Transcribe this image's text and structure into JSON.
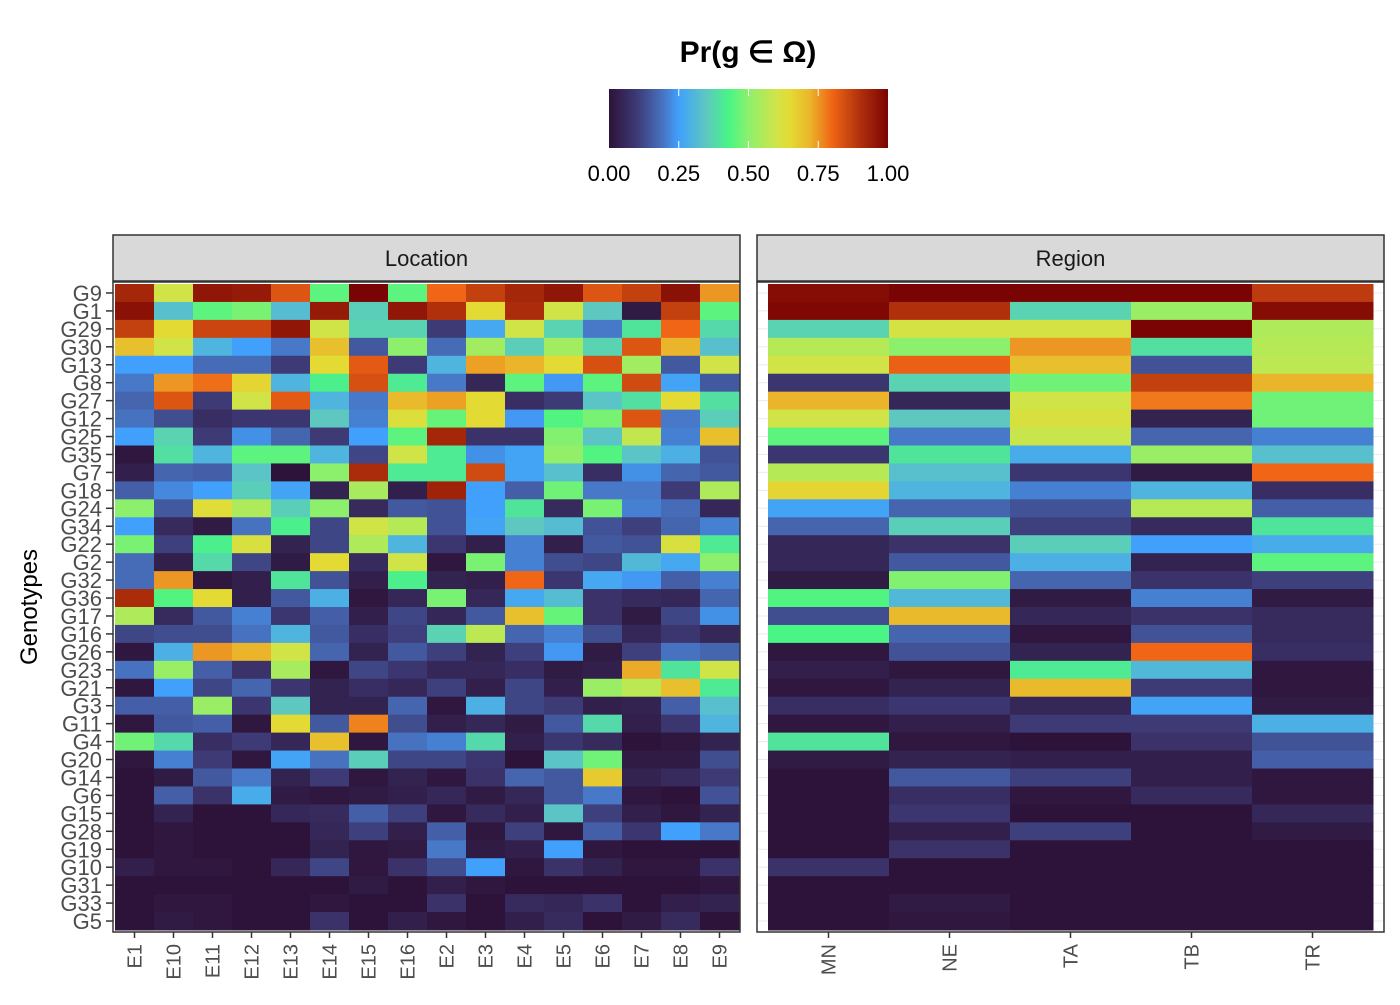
{
  "chart_data": {
    "type": "heatmap",
    "legend": {
      "title": "Pr(g ∈ Ω)",
      "placement": "top",
      "range": [
        0,
        1
      ],
      "ticks": [
        "0.00",
        "0.25",
        "0.50",
        "0.75",
        "1.00"
      ],
      "colormap": [
        "#2d1339",
        "#3d3a75",
        "#4878c8",
        "#40a0fc",
        "#5ec8c0",
        "#48f585",
        "#8df06c",
        "#d0e448",
        "#e4da34",
        "#eab52a",
        "#f06516",
        "#b0300c",
        "#7a0403"
      ]
    },
    "ylabel": "Genotypes",
    "genotypes": [
      "G9",
      "G1",
      "G29",
      "G30",
      "G13",
      "G8",
      "G27",
      "G12",
      "G25",
      "G35",
      "G7",
      "G18",
      "G24",
      "G34",
      "G22",
      "G2",
      "G32",
      "G36",
      "G17",
      "G16",
      "G26",
      "G23",
      "G21",
      "G3",
      "G11",
      "G4",
      "G20",
      "G14",
      "G6",
      "G15",
      "G28",
      "G19",
      "G10",
      "G31",
      "G33",
      "G5"
    ],
    "panels": [
      {
        "strip": "Location",
        "categories": [
          "E1",
          "E10",
          "E11",
          "E12",
          "E13",
          "E14",
          "E15",
          "E16",
          "E2",
          "E3",
          "E4",
          "E5",
          "E6",
          "E7",
          "E8",
          "E9"
        ],
        "values": [
          [
            0.92,
            0.6,
            0.96,
            0.95,
            0.83,
            0.45,
            1.0,
            0.45,
            0.8,
            0.87,
            0.92,
            0.96,
            0.83,
            0.87,
            0.97,
            0.75
          ],
          [
            0.97,
            0.33,
            0.45,
            0.48,
            0.32,
            0.95,
            0.36,
            0.96,
            0.9,
            0.65,
            0.91,
            0.6,
            0.35,
            0.02,
            0.87,
            0.45
          ],
          [
            0.87,
            0.65,
            0.86,
            0.86,
            0.96,
            0.6,
            0.37,
            0.37,
            0.1,
            0.27,
            0.6,
            0.37,
            0.2,
            0.4,
            0.8,
            0.38
          ],
          [
            0.7,
            0.6,
            0.3,
            0.25,
            0.2,
            0.7,
            0.15,
            0.5,
            0.18,
            0.53,
            0.36,
            0.53,
            0.37,
            0.83,
            0.72,
            0.33
          ],
          [
            0.25,
            0.25,
            0.18,
            0.18,
            0.1,
            0.65,
            0.82,
            0.1,
            0.3,
            0.74,
            0.72,
            0.65,
            0.84,
            0.53,
            0.15,
            0.6
          ],
          [
            0.2,
            0.75,
            0.79,
            0.66,
            0.3,
            0.42,
            0.84,
            0.41,
            0.2,
            0.05,
            0.45,
            0.24,
            0.45,
            0.85,
            0.26,
            0.15
          ],
          [
            0.17,
            0.83,
            0.1,
            0.6,
            0.82,
            0.3,
            0.2,
            0.71,
            0.74,
            0.65,
            0.07,
            0.1,
            0.34,
            0.39,
            0.65,
            0.39
          ],
          [
            0.19,
            0.13,
            0.07,
            0.09,
            0.09,
            0.35,
            0.21,
            0.63,
            0.46,
            0.65,
            0.24,
            0.44,
            0.48,
            0.83,
            0.2,
            0.36
          ],
          [
            0.25,
            0.37,
            0.1,
            0.23,
            0.17,
            0.1,
            0.25,
            0.45,
            0.92,
            0.08,
            0.08,
            0.49,
            0.34,
            0.58,
            0.21,
            0.7
          ],
          [
            0.01,
            0.39,
            0.3,
            0.45,
            0.45,
            0.3,
            0.12,
            0.6,
            0.41,
            0.23,
            0.26,
            0.51,
            0.44,
            0.34,
            0.29,
            0.14
          ],
          [
            0.03,
            0.17,
            0.16,
            0.34,
            0.0,
            0.5,
            0.91,
            0.41,
            0.41,
            0.85,
            0.26,
            0.33,
            0.07,
            0.23,
            0.17,
            0.15
          ],
          [
            0.16,
            0.22,
            0.25,
            0.36,
            0.26,
            0.04,
            0.54,
            0.03,
            0.93,
            0.25,
            0.16,
            0.47,
            0.2,
            0.2,
            0.1,
            0.55
          ],
          [
            0.5,
            0.15,
            0.64,
            0.55,
            0.36,
            0.5,
            0.06,
            0.15,
            0.14,
            0.25,
            0.4,
            0.06,
            0.48,
            0.21,
            0.18,
            0.05
          ],
          [
            0.25,
            0.06,
            0.02,
            0.19,
            0.42,
            0.12,
            0.6,
            0.56,
            0.14,
            0.26,
            0.35,
            0.32,
            0.14,
            0.11,
            0.17,
            0.21
          ],
          [
            0.48,
            0.11,
            0.42,
            0.62,
            0.04,
            0.12,
            0.55,
            0.3,
            0.09,
            0.03,
            0.21,
            0.03,
            0.15,
            0.14,
            0.62,
            0.41
          ],
          [
            0.18,
            0.03,
            0.38,
            0.12,
            0.02,
            0.65,
            0.06,
            0.6,
            0.01,
            0.48,
            0.21,
            0.13,
            0.12,
            0.31,
            0.27,
            0.5
          ],
          [
            0.18,
            0.75,
            0.01,
            0.03,
            0.4,
            0.14,
            0.03,
            0.42,
            0.04,
            0.03,
            0.8,
            0.09,
            0.27,
            0.24,
            0.16,
            0.21
          ],
          [
            0.91,
            0.44,
            0.65,
            0.03,
            0.15,
            0.29,
            0.01,
            0.05,
            0.48,
            0.05,
            0.27,
            0.32,
            0.08,
            0.06,
            0.05,
            0.17
          ],
          [
            0.55,
            0.06,
            0.15,
            0.21,
            0.09,
            0.16,
            0.03,
            0.12,
            0.05,
            0.15,
            0.7,
            0.46,
            0.08,
            0.02,
            0.12,
            0.23
          ],
          [
            0.12,
            0.13,
            0.13,
            0.19,
            0.3,
            0.15,
            0.07,
            0.11,
            0.37,
            0.57,
            0.17,
            0.21,
            0.13,
            0.05,
            0.09,
            0.05
          ],
          [
            0.01,
            0.29,
            0.75,
            0.72,
            0.6,
            0.17,
            0.04,
            0.15,
            0.11,
            0.04,
            0.11,
            0.24,
            0.02,
            0.11,
            0.19,
            0.17
          ],
          [
            0.19,
            0.52,
            0.16,
            0.08,
            0.54,
            0.01,
            0.12,
            0.09,
            0.05,
            0.05,
            0.07,
            0.02,
            0.03,
            0.73,
            0.4,
            0.6
          ],
          [
            0.01,
            0.25,
            0.12,
            0.17,
            0.09,
            0.04,
            0.07,
            0.05,
            0.11,
            0.03,
            0.12,
            0.03,
            0.52,
            0.57,
            0.7,
            0.41
          ],
          [
            0.16,
            0.16,
            0.52,
            0.09,
            0.35,
            0.04,
            0.04,
            0.17,
            0.01,
            0.29,
            0.12,
            0.1,
            0.03,
            0.04,
            0.16,
            0.33
          ],
          [
            0.01,
            0.15,
            0.16,
            0.01,
            0.65,
            0.15,
            0.77,
            0.13,
            0.03,
            0.05,
            0.02,
            0.15,
            0.38,
            0.03,
            0.09,
            0.3
          ],
          [
            0.47,
            0.38,
            0.07,
            0.1,
            0.05,
            0.7,
            0.01,
            0.19,
            0.21,
            0.38,
            0.03,
            0.09,
            0.06,
            0.0,
            0.01,
            0.04
          ],
          [
            0.01,
            0.21,
            0.1,
            0.01,
            0.26,
            0.19,
            0.36,
            0.12,
            0.12,
            0.09,
            0.0,
            0.34,
            0.47,
            0.02,
            0.02,
            0.13
          ],
          [
            0.0,
            0.02,
            0.15,
            0.2,
            0.04,
            0.1,
            0.01,
            0.04,
            0.01,
            0.08,
            0.17,
            0.15,
            0.68,
            0.04,
            0.06,
            0.1
          ],
          [
            0.0,
            0.16,
            0.08,
            0.28,
            0.02,
            0.01,
            0.02,
            0.03,
            0.05,
            0.02,
            0.05,
            0.15,
            0.2,
            0.01,
            0.0,
            0.14
          ],
          [
            0.0,
            0.04,
            0.0,
            0.0,
            0.05,
            0.06,
            0.16,
            0.11,
            0.01,
            0.06,
            0.03,
            0.34,
            0.11,
            0.03,
            0.01,
            0.04
          ],
          [
            0.0,
            0.01,
            0.0,
            0.0,
            0.0,
            0.05,
            0.11,
            0.03,
            0.16,
            0.01,
            0.11,
            0.01,
            0.16,
            0.09,
            0.25,
            0.2
          ],
          [
            0.0,
            0.01,
            0.0,
            0.0,
            0.0,
            0.04,
            0.01,
            0.02,
            0.2,
            0.02,
            0.03,
            0.25,
            0.01,
            0.0,
            0.0,
            0.0
          ],
          [
            0.03,
            0.01,
            0.01,
            0.0,
            0.05,
            0.12,
            0.01,
            0.08,
            0.13,
            0.25,
            0.01,
            0.08,
            0.04,
            0.01,
            0.01,
            0.08
          ],
          [
            0.0,
            0.0,
            0.0,
            0.0,
            0.0,
            0.0,
            0.02,
            0.0,
            0.03,
            0.01,
            0.0,
            0.0,
            0.0,
            0.0,
            0.0,
            0.01
          ],
          [
            0.0,
            0.01,
            0.01,
            0.0,
            0.0,
            0.01,
            0.0,
            0.0,
            0.08,
            0.0,
            0.06,
            0.05,
            0.08,
            0.0,
            0.03,
            0.04
          ],
          [
            0.0,
            0.02,
            0.01,
            0.0,
            0.0,
            0.08,
            0.0,
            0.03,
            0.01,
            0.0,
            0.03,
            0.06,
            0.0,
            0.02,
            0.06,
            0.0
          ]
        ]
      },
      {
        "strip": "Region",
        "categories": [
          "MN",
          "NE",
          "TA",
          "TB",
          "TR"
        ],
        "values": [
          [
            0.98,
            1.0,
            1.0,
            1.0,
            0.88
          ],
          [
            0.99,
            0.9,
            0.37,
            0.52,
            0.98
          ],
          [
            0.37,
            0.61,
            0.61,
            1.0,
            0.55
          ],
          [
            0.56,
            0.5,
            0.75,
            0.39,
            0.56
          ],
          [
            0.6,
            0.81,
            0.7,
            0.14,
            0.57
          ],
          [
            0.09,
            0.37,
            0.47,
            0.87,
            0.72
          ],
          [
            0.72,
            0.05,
            0.6,
            0.78,
            0.47
          ],
          [
            0.6,
            0.35,
            0.62,
            0.04,
            0.47
          ],
          [
            0.45,
            0.2,
            0.59,
            0.17,
            0.21
          ],
          [
            0.09,
            0.4,
            0.28,
            0.52,
            0.33
          ],
          [
            0.56,
            0.33,
            0.09,
            0.02,
            0.8
          ],
          [
            0.66,
            0.3,
            0.21,
            0.3,
            0.07
          ],
          [
            0.26,
            0.17,
            0.14,
            0.56,
            0.16
          ],
          [
            0.17,
            0.36,
            0.11,
            0.06,
            0.4
          ],
          [
            0.05,
            0.08,
            0.36,
            0.25,
            0.28
          ],
          [
            0.05,
            0.15,
            0.29,
            0.04,
            0.45
          ],
          [
            0.02,
            0.49,
            0.17,
            0.08,
            0.11
          ],
          [
            0.44,
            0.31,
            0.02,
            0.21,
            0.02
          ],
          [
            0.13,
            0.71,
            0.05,
            0.08,
            0.06
          ],
          [
            0.43,
            0.17,
            0.01,
            0.14,
            0.06
          ],
          [
            0.01,
            0.14,
            0.04,
            0.8,
            0.07
          ],
          [
            0.03,
            0.01,
            0.41,
            0.31,
            0.01
          ],
          [
            0.01,
            0.04,
            0.71,
            0.1,
            0.01
          ],
          [
            0.07,
            0.09,
            0.05,
            0.26,
            0.02
          ],
          [
            0.01,
            0.03,
            0.1,
            0.1,
            0.29
          ],
          [
            0.4,
            0.01,
            0.0,
            0.08,
            0.14
          ],
          [
            0.02,
            0.04,
            0.03,
            0.03,
            0.16
          ],
          [
            0.0,
            0.15,
            0.11,
            0.03,
            0.01
          ],
          [
            0.0,
            0.07,
            0.01,
            0.06,
            0.01
          ],
          [
            0.0,
            0.09,
            0.0,
            0.0,
            0.05
          ],
          [
            0.0,
            0.03,
            0.11,
            0.0,
            0.02
          ],
          [
            0.0,
            0.08,
            0.0,
            0.0,
            0.0
          ],
          [
            0.08,
            0.0,
            0.0,
            0.0,
            0.0
          ],
          [
            0.0,
            0.0,
            0.0,
            0.0,
            0.0
          ],
          [
            0.0,
            0.02,
            0.0,
            0.0,
            0.0
          ],
          [
            0.0,
            0.01,
            0.0,
            0.0,
            0.0
          ]
        ]
      }
    ]
  }
}
